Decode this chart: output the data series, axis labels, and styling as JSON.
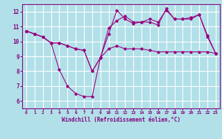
{
  "background_color": "#b2e0e8",
  "grid_color": "#ffffff",
  "line_color": "#990080",
  "xlabel": "Windchill (Refroidissement éolien,°C)",
  "xlabel_color": "#800080",
  "xlim": [
    -0.5,
    23.5
  ],
  "ylim": [
    5.5,
    12.5
  ],
  "yticks": [
    6,
    7,
    8,
    9,
    10,
    11,
    12
  ],
  "xticks": [
    0,
    1,
    2,
    3,
    4,
    5,
    6,
    7,
    8,
    9,
    10,
    11,
    12,
    13,
    14,
    15,
    16,
    17,
    18,
    19,
    20,
    21,
    22,
    23
  ],
  "series1_y": [
    10.7,
    10.5,
    10.3,
    9.9,
    8.1,
    7.0,
    6.5,
    6.3,
    6.3,
    8.9,
    10.5,
    12.1,
    11.5,
    11.2,
    11.3,
    11.3,
    11.1,
    12.2,
    11.5,
    11.5,
    11.6,
    11.8,
    10.4,
    9.2
  ],
  "series2_y": [
    10.7,
    10.5,
    10.3,
    9.9,
    9.9,
    9.7,
    9.5,
    9.4,
    8.0,
    8.9,
    10.9,
    11.4,
    11.7,
    11.3,
    11.3,
    11.5,
    11.3,
    12.1,
    11.5,
    11.5,
    11.5,
    11.8,
    10.3,
    9.2
  ],
  "series3_y": [
    10.7,
    10.5,
    10.3,
    9.9,
    9.9,
    9.7,
    9.5,
    9.4,
    8.0,
    8.9,
    9.5,
    9.7,
    9.5,
    9.5,
    9.5,
    9.4,
    9.3,
    9.3,
    9.3,
    9.3,
    9.3,
    9.3,
    9.3,
    9.2
  ]
}
